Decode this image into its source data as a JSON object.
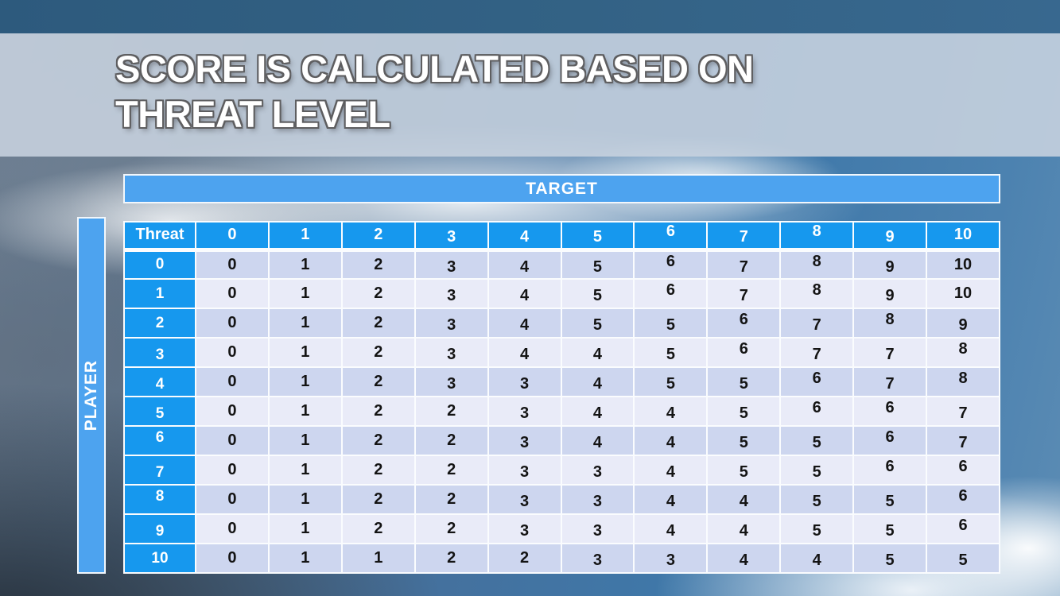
{
  "slide": {
    "title_line1": "Score is calculated based on",
    "title_line2": "threat level"
  },
  "matrix": {
    "target_label": "TARGET",
    "player_label": "PLAYER",
    "corner_label": "Threat",
    "column_headers": [
      "0",
      "1",
      "2",
      "3",
      "4",
      "5",
      "6",
      "7",
      "8",
      "9",
      "10"
    ],
    "row_headers": [
      "0",
      "1",
      "2",
      "3",
      "4",
      "5",
      "6",
      "7",
      "8",
      "9",
      "10"
    ],
    "rows": [
      [
        0,
        1,
        2,
        3,
        4,
        5,
        6,
        7,
        8,
        9,
        10
      ],
      [
        0,
        1,
        2,
        3,
        4,
        5,
        6,
        7,
        8,
        9,
        10
      ],
      [
        0,
        1,
        2,
        3,
        4,
        5,
        5,
        6,
        7,
        8,
        9
      ],
      [
        0,
        1,
        2,
        3,
        4,
        4,
        5,
        6,
        7,
        7,
        8
      ],
      [
        0,
        1,
        2,
        3,
        3,
        4,
        5,
        5,
        6,
        7,
        8
      ],
      [
        0,
        1,
        2,
        2,
        3,
        4,
        4,
        5,
        6,
        6,
        7
      ],
      [
        0,
        1,
        2,
        2,
        3,
        4,
        4,
        5,
        5,
        6,
        7
      ],
      [
        0,
        1,
        2,
        2,
        3,
        3,
        4,
        5,
        5,
        6,
        6
      ],
      [
        0,
        1,
        2,
        2,
        3,
        3,
        4,
        4,
        5,
        5,
        6
      ],
      [
        0,
        1,
        2,
        2,
        3,
        3,
        4,
        4,
        5,
        5,
        6
      ],
      [
        0,
        1,
        1,
        2,
        2,
        3,
        3,
        4,
        4,
        5,
        5
      ]
    ]
  },
  "chart_data": {
    "type": "table",
    "title": "Score lookup by player threat (rows) vs target threat (columns)",
    "row_axis": "PLAYER Threat",
    "column_axis": "TARGET Threat",
    "columns": [
      0,
      1,
      2,
      3,
      4,
      5,
      6,
      7,
      8,
      9,
      10
    ],
    "rows_index": [
      0,
      1,
      2,
      3,
      4,
      5,
      6,
      7,
      8,
      9,
      10
    ],
    "values": [
      [
        0,
        1,
        2,
        3,
        4,
        5,
        6,
        7,
        8,
        9,
        10
      ],
      [
        0,
        1,
        2,
        3,
        4,
        5,
        6,
        7,
        8,
        9,
        10
      ],
      [
        0,
        1,
        2,
        3,
        4,
        5,
        5,
        6,
        7,
        8,
        9
      ],
      [
        0,
        1,
        2,
        3,
        4,
        4,
        5,
        6,
        7,
        7,
        8
      ],
      [
        0,
        1,
        2,
        3,
        3,
        4,
        5,
        5,
        6,
        7,
        8
      ],
      [
        0,
        1,
        2,
        2,
        3,
        4,
        4,
        5,
        6,
        6,
        7
      ],
      [
        0,
        1,
        2,
        2,
        3,
        4,
        4,
        5,
        5,
        6,
        7
      ],
      [
        0,
        1,
        2,
        2,
        3,
        3,
        4,
        5,
        5,
        6,
        6
      ],
      [
        0,
        1,
        2,
        2,
        3,
        3,
        4,
        4,
        5,
        5,
        6
      ],
      [
        0,
        1,
        2,
        2,
        3,
        3,
        4,
        4,
        5,
        5,
        6
      ],
      [
        0,
        1,
        1,
        2,
        2,
        3,
        3,
        4,
        4,
        5,
        5
      ]
    ]
  },
  "colors": {
    "header_azure": "#1698EE",
    "bar_blue": "#4DA3EF",
    "row_band_dark": "#CDD6EF",
    "row_band_light": "#E9EBF8",
    "top_bar_steel": "#2E5B80",
    "banner_overlay": "#C8D3DF",
    "grid_line": "#FAFCFE",
    "title_text": "#FFFFFF",
    "title_outline": "#5E5E60",
    "cell_text": "#141414"
  }
}
